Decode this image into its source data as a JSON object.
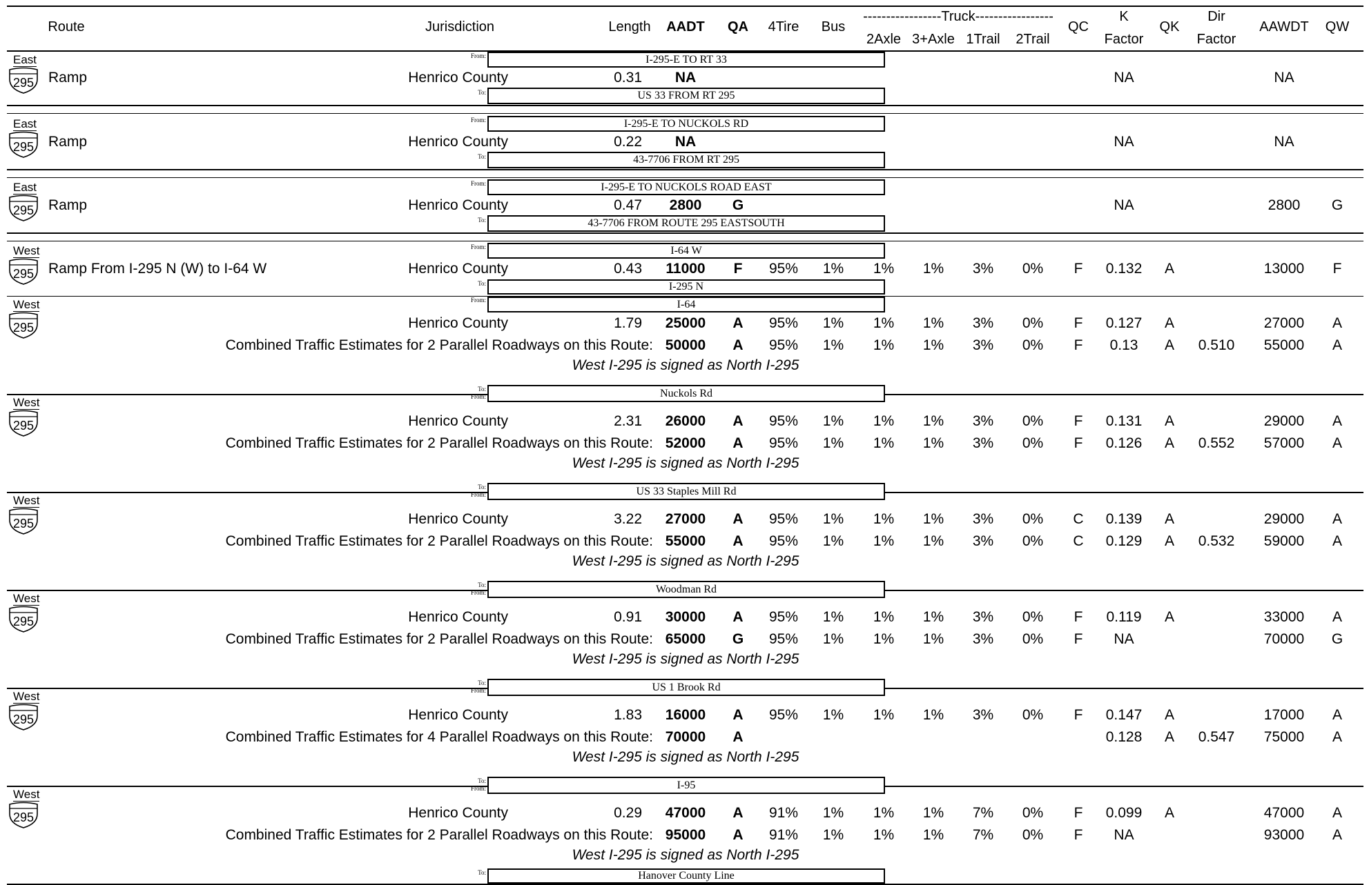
{
  "header": {
    "route": "Route",
    "jurisdiction": "Jurisdiction",
    "length": "Length",
    "aadt": "AADT",
    "qa": "QA",
    "four_tire": "4Tire",
    "bus": "Bus",
    "truck_group": "-----------------Truck-----------------",
    "two_axle": "2Axle",
    "three_axle": "3+Axle",
    "one_trail": "1Trail",
    "two_trail": "2Trail",
    "qc": "QC",
    "k_factor_1": "K",
    "k_factor_2": "Factor",
    "qk": "QK",
    "dir_factor_1": "Dir",
    "dir_factor_2": "Factor",
    "aawdt": "AAWDT",
    "qw": "QW"
  },
  "labels": {
    "from": "From:",
    "to": "To:",
    "combined_2": "Combined Traffic Estimates for 2 Parallel Roadways on this Route:",
    "combined_4": "Combined Traffic Estimates for 4 Parallel Roadways on this Route:",
    "note": "West I-295 is signed as North I-295",
    "shield_number": "295"
  },
  "ramps": [
    {
      "direction": "East",
      "name": "Ramp",
      "from": "I-295-E TO RT 33",
      "jurisdiction": "Henrico County",
      "length": "0.31",
      "aadt": "NA",
      "qa": "",
      "four_tire": "",
      "bus": "",
      "two_axle": "",
      "three_axle": "",
      "one_trail": "",
      "two_trail": "",
      "qc": "",
      "k": "NA",
      "qk": "",
      "dir": "",
      "aawdt": "NA",
      "qw": "",
      "to": "US 33 FROM RT 295"
    },
    {
      "direction": "East",
      "name": "Ramp",
      "from": "I-295-E TO NUCKOLS RD",
      "jurisdiction": "Henrico County",
      "length": "0.22",
      "aadt": "NA",
      "qa": "",
      "four_tire": "",
      "bus": "",
      "two_axle": "",
      "three_axle": "",
      "one_trail": "",
      "two_trail": "",
      "qc": "",
      "k": "NA",
      "qk": "",
      "dir": "",
      "aawdt": "NA",
      "qw": "",
      "to": "43-7706 FROM RT 295"
    },
    {
      "direction": "East",
      "name": "Ramp",
      "from": "I-295-E TO NUCKOLS ROAD EAST",
      "jurisdiction": "Henrico County",
      "length": "0.47",
      "aadt": "2800",
      "qa": "G",
      "four_tire": "",
      "bus": "",
      "two_axle": "",
      "three_axle": "",
      "one_trail": "",
      "two_trail": "",
      "qc": "",
      "k": "NA",
      "qk": "",
      "dir": "",
      "aawdt": "2800",
      "qw": "G",
      "to": "43-7706 FROM ROUTE 295 EASTSOUTH"
    },
    {
      "direction": "West",
      "name": "Ramp From I-295 N (W) to I-64 W",
      "from": "I-64 W",
      "jurisdiction": "Henrico County",
      "length": "0.43",
      "aadt": "11000",
      "qa": "F",
      "four_tire": "95%",
      "bus": "1%",
      "two_axle": "1%",
      "three_axle": "1%",
      "one_trail": "3%",
      "two_trail": "0%",
      "qc": "F",
      "k": "0.132",
      "qk": "A",
      "dir": "",
      "aawdt": "13000",
      "qw": "F",
      "to": "I-295 N"
    }
  ],
  "segments": [
    {
      "direction": "West",
      "from": "I-64",
      "to_prev": "",
      "main": {
        "jurisdiction": "Henrico County",
        "length": "1.79",
        "aadt": "25000",
        "qa": "A",
        "four_tire": "95%",
        "bus": "1%",
        "two_axle": "1%",
        "three_axle": "1%",
        "one_trail": "3%",
        "two_trail": "0%",
        "qc": "F",
        "k": "0.127",
        "qk": "A",
        "dir": "",
        "aawdt": "27000",
        "qw": "A"
      },
      "combined": {
        "label_key": "combined_2",
        "aadt": "50000",
        "qa": "A",
        "four_tire": "95%",
        "bus": "1%",
        "two_axle": "1%",
        "three_axle": "1%",
        "one_trail": "3%",
        "two_trail": "0%",
        "qc": "F",
        "k": "0.13",
        "qk": "A",
        "dir": "0.510",
        "aawdt": "55000",
        "qw": "A"
      }
    },
    {
      "direction": "West",
      "from": "Nuckols Rd",
      "main": {
        "jurisdiction": "Henrico County",
        "length": "2.31",
        "aadt": "26000",
        "qa": "A",
        "four_tire": "95%",
        "bus": "1%",
        "two_axle": "1%",
        "three_axle": "1%",
        "one_trail": "3%",
        "two_trail": "0%",
        "qc": "F",
        "k": "0.131",
        "qk": "A",
        "dir": "",
        "aawdt": "29000",
        "qw": "A"
      },
      "combined": {
        "label_key": "combined_2",
        "aadt": "52000",
        "qa": "A",
        "four_tire": "95%",
        "bus": "1%",
        "two_axle": "1%",
        "three_axle": "1%",
        "one_trail": "3%",
        "two_trail": "0%",
        "qc": "F",
        "k": "0.126",
        "qk": "A",
        "dir": "0.552",
        "aawdt": "57000",
        "qw": "A"
      }
    },
    {
      "direction": "West",
      "from": "US 33 Staples Mill Rd",
      "main": {
        "jurisdiction": "Henrico County",
        "length": "3.22",
        "aadt": "27000",
        "qa": "A",
        "four_tire": "95%",
        "bus": "1%",
        "two_axle": "1%",
        "three_axle": "1%",
        "one_trail": "3%",
        "two_trail": "0%",
        "qc": "C",
        "k": "0.139",
        "qk": "A",
        "dir": "",
        "aawdt": "29000",
        "qw": "A"
      },
      "combined": {
        "label_key": "combined_2",
        "aadt": "55000",
        "qa": "A",
        "four_tire": "95%",
        "bus": "1%",
        "two_axle": "1%",
        "three_axle": "1%",
        "one_trail": "3%",
        "two_trail": "0%",
        "qc": "C",
        "k": "0.129",
        "qk": "A",
        "dir": "0.532",
        "aawdt": "59000",
        "qw": "A"
      }
    },
    {
      "direction": "West",
      "from": "Woodman Rd",
      "main": {
        "jurisdiction": "Henrico County",
        "length": "0.91",
        "aadt": "30000",
        "qa": "A",
        "four_tire": "95%",
        "bus": "1%",
        "two_axle": "1%",
        "three_axle": "1%",
        "one_trail": "3%",
        "two_trail": "0%",
        "qc": "F",
        "k": "0.119",
        "qk": "A",
        "dir": "",
        "aawdt": "33000",
        "qw": "A"
      },
      "combined": {
        "label_key": "combined_2",
        "aadt": "65000",
        "qa": "G",
        "four_tire": "95%",
        "bus": "1%",
        "two_axle": "1%",
        "three_axle": "1%",
        "one_trail": "3%",
        "two_trail": "0%",
        "qc": "F",
        "k": "NA",
        "qk": "",
        "dir": "",
        "aawdt": "70000",
        "qw": "G"
      }
    },
    {
      "direction": "West",
      "from": "US 1 Brook Rd",
      "main": {
        "jurisdiction": "Henrico County",
        "length": "1.83",
        "aadt": "16000",
        "qa": "A",
        "four_tire": "95%",
        "bus": "1%",
        "two_axle": "1%",
        "three_axle": "1%",
        "one_trail": "3%",
        "two_trail": "0%",
        "qc": "F",
        "k": "0.147",
        "qk": "A",
        "dir": "",
        "aawdt": "17000",
        "qw": "A"
      },
      "combined": {
        "label_key": "combined_4",
        "aadt": "70000",
        "qa": "A",
        "four_tire": "",
        "bus": "",
        "two_axle": "",
        "three_axle": "",
        "one_trail": "",
        "two_trail": "",
        "qc": "",
        "k": "0.128",
        "qk": "A",
        "dir": "0.547",
        "aawdt": "75000",
        "qw": "A"
      }
    },
    {
      "direction": "West",
      "from": "I-95",
      "main": {
        "jurisdiction": "Henrico County",
        "length": "0.29",
        "aadt": "47000",
        "qa": "A",
        "four_tire": "91%",
        "bus": "1%",
        "two_axle": "1%",
        "three_axle": "1%",
        "one_trail": "7%",
        "two_trail": "0%",
        "qc": "F",
        "k": "0.099",
        "qk": "A",
        "dir": "",
        "aawdt": "47000",
        "qw": "A"
      },
      "combined": {
        "label_key": "combined_2",
        "aadt": "95000",
        "qa": "A",
        "four_tire": "91%",
        "bus": "1%",
        "two_axle": "1%",
        "three_axle": "1%",
        "one_trail": "7%",
        "two_trail": "0%",
        "qc": "F",
        "k": "NA",
        "qk": "",
        "dir": "",
        "aawdt": "93000",
        "qw": "A"
      }
    }
  ],
  "final_to": "Hanover County Line"
}
